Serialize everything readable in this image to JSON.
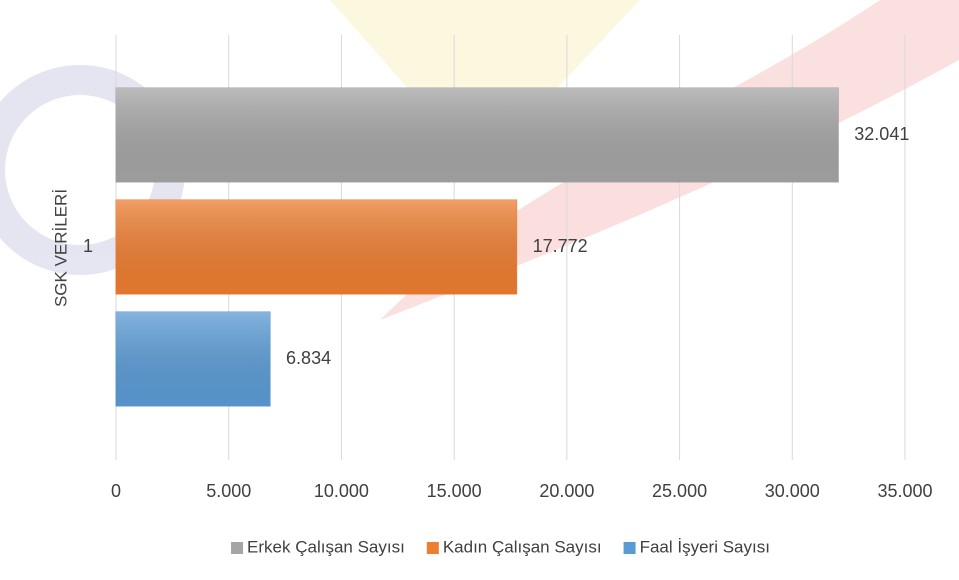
{
  "chart_data": {
    "type": "bar",
    "orientation": "horizontal",
    "y_label": "SGK VERİLERİ",
    "categories": [
      "1"
    ],
    "series": [
      {
        "name": "Erkek Çalışan Sayısı",
        "color": "#a5a5a5",
        "values": [
          32041
        ],
        "value_labels": [
          "32.041"
        ]
      },
      {
        "name": "Kadın Çalışan Sayısı",
        "color": "#ed7d31",
        "values": [
          17772
        ],
        "value_labels": [
          "17.772"
        ]
      },
      {
        "name": "Faal İşyeri Sayısı",
        "color": "#5b9bd5",
        "values": [
          6834
        ],
        "value_labels": [
          "6.834"
        ]
      }
    ],
    "xlim": [
      0,
      35000
    ],
    "xticks": [
      0,
      {
        "value": 5000,
        "label": "5.000"
      },
      {
        "value": 10000,
        "label": "10.000"
      },
      {
        "value": 15000,
        "label": "15.000"
      },
      {
        "value": 20000,
        "label": "20.000"
      },
      {
        "value": 25000,
        "label": "25.000"
      },
      {
        "value": 30000,
        "label": "30.000"
      },
      {
        "value": 35000,
        "label": "35.000"
      }
    ],
    "grid": true,
    "legend": "bottom"
  }
}
